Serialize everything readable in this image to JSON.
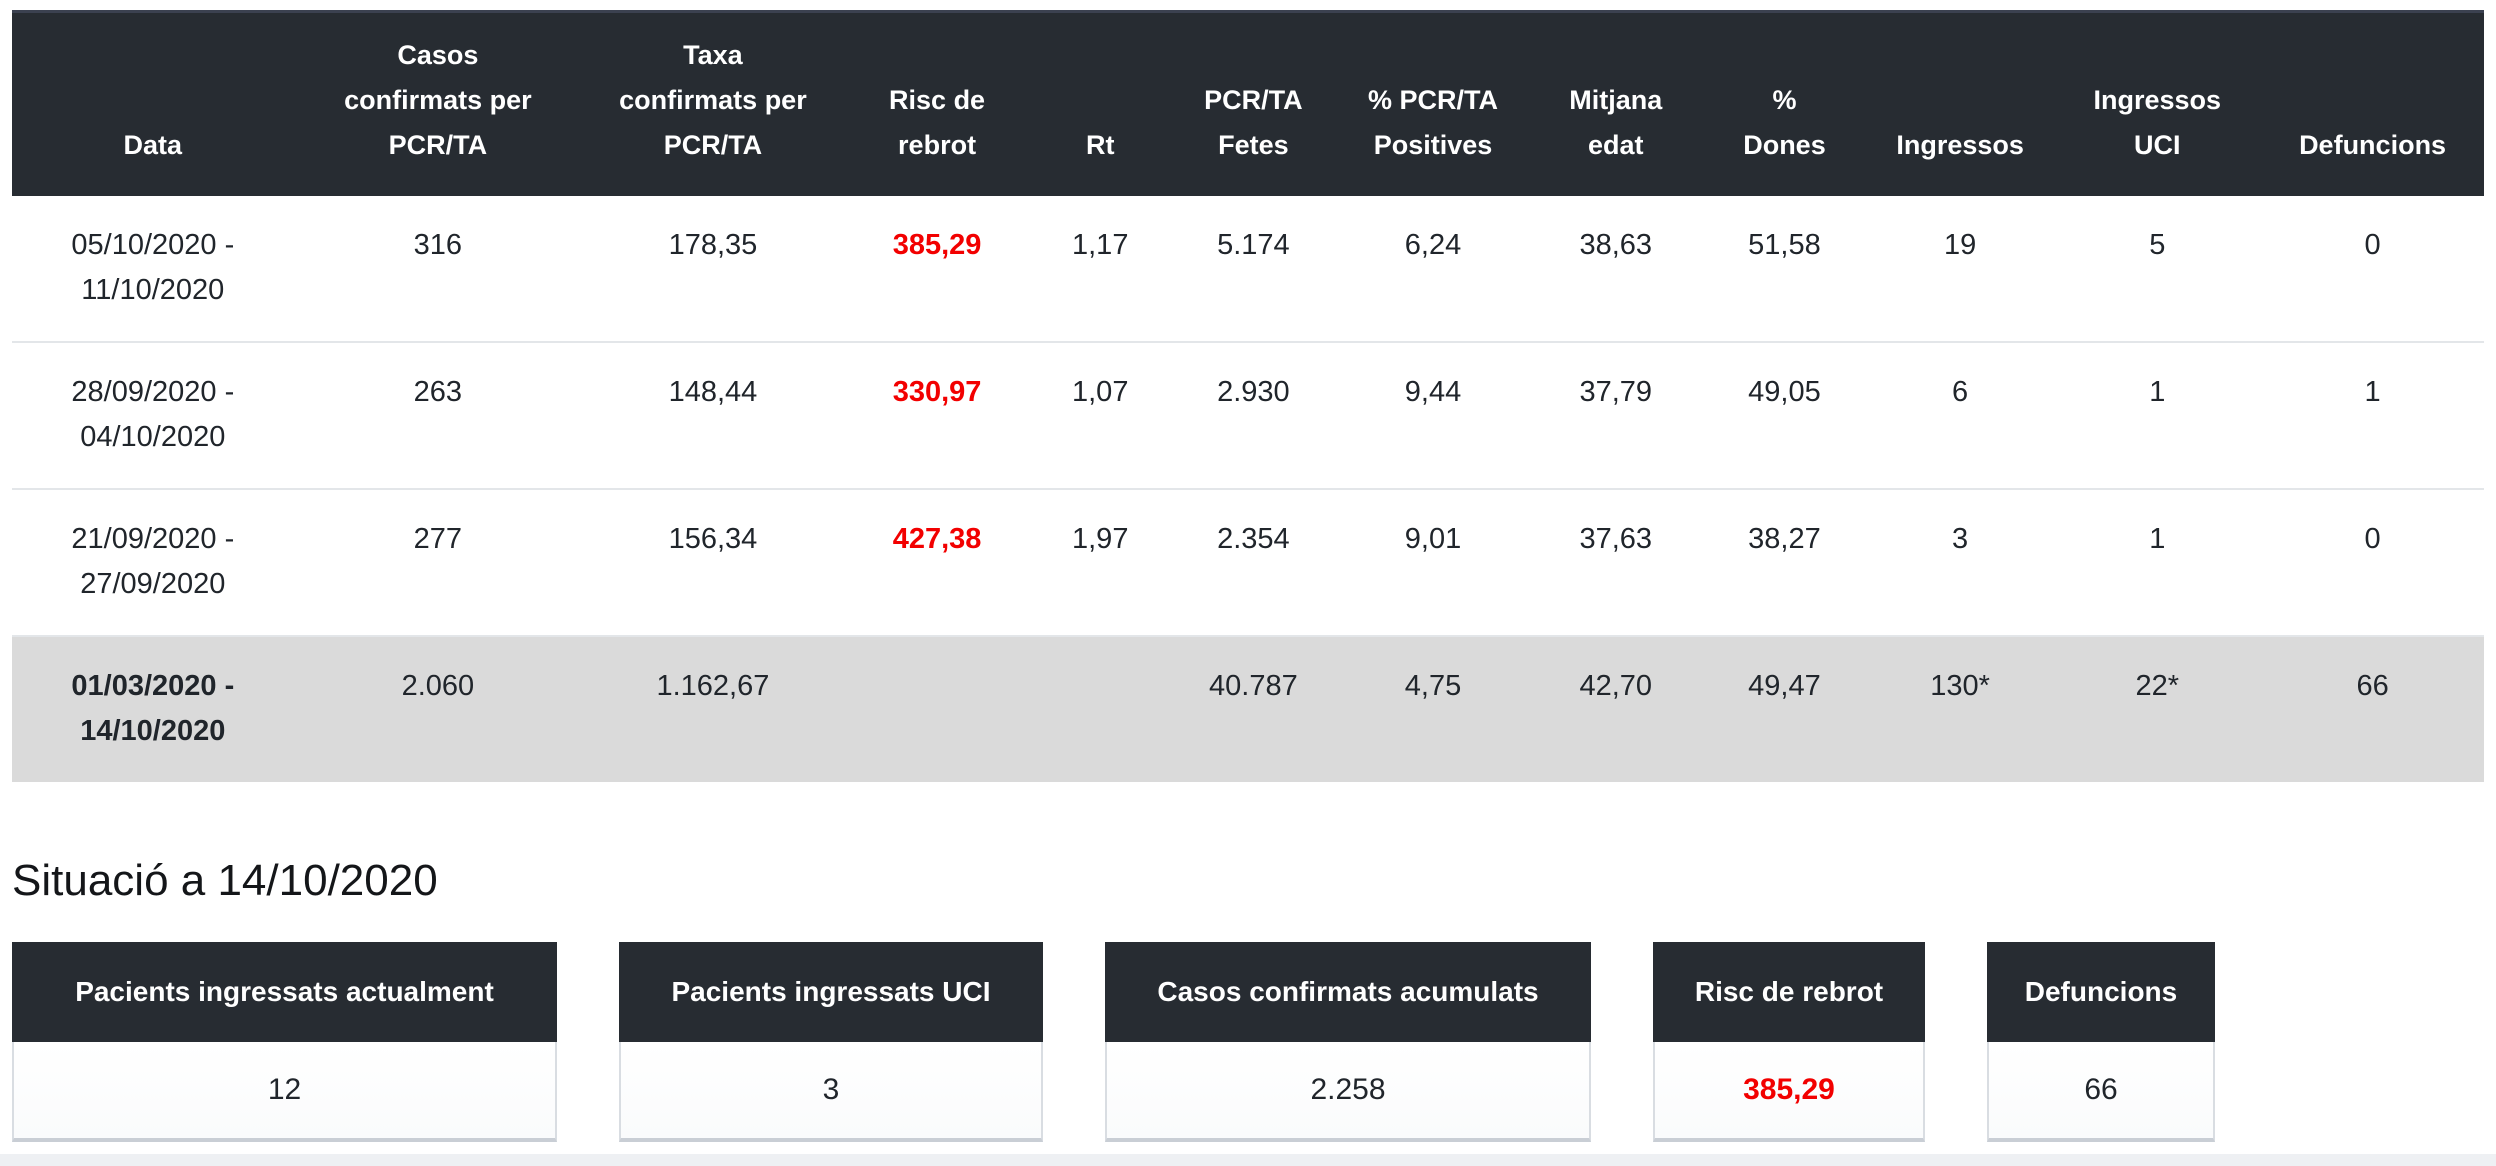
{
  "colors": {
    "header_bg": "#272c32",
    "accent_red": "#f20000",
    "total_row_bg": "#dadada"
  },
  "table": {
    "risc_column_index": 3,
    "columns": [
      "Data",
      "Casos\nconfirmats per\nPCR/TA",
      "Taxa\nconfirmats per\nPCR/TA",
      "Risc de\nrebrot",
      "Rt",
      "PCR/TA\nFetes",
      "% PCR/TA\nPositives",
      "Mitjana\nedat",
      "%\nDones",
      "Ingressos",
      "Ingressos\nUCI",
      "Defuncions"
    ],
    "rows": [
      {
        "total": false,
        "cells": [
          "05/10/2020 -\n11/10/2020",
          "316",
          "178,35",
          "385,29",
          "1,17",
          "5.174",
          "6,24",
          "38,63",
          "51,58",
          "19",
          "5",
          "0"
        ]
      },
      {
        "total": false,
        "cells": [
          "28/09/2020 -\n04/10/2020",
          "263",
          "148,44",
          "330,97",
          "1,07",
          "2.930",
          "9,44",
          "37,79",
          "49,05",
          "6",
          "1",
          "1"
        ]
      },
      {
        "total": false,
        "cells": [
          "21/09/2020 -\n27/09/2020",
          "277",
          "156,34",
          "427,38",
          "1,97",
          "2.354",
          "9,01",
          "37,63",
          "38,27",
          "3",
          "1",
          "0"
        ]
      },
      {
        "total": true,
        "cells": [
          "01/03/2020 -\n14/10/2020",
          "2.060",
          "1.162,67",
          "",
          "",
          "40.787",
          "4,75",
          "42,70",
          "49,47",
          "130*",
          "22*",
          "66"
        ]
      }
    ]
  },
  "situation": {
    "title": "Situació a 14/10/2020",
    "cards": [
      {
        "label": "Pacients ingressats actualment",
        "value": "12",
        "highlight": false
      },
      {
        "label": "Pacients ingressats UCI",
        "value": "3",
        "highlight": false
      },
      {
        "label": "Casos confirmats acumulats",
        "value": "2.258",
        "highlight": false
      },
      {
        "label": "Risc de rebrot",
        "value": "385,29",
        "highlight": true
      },
      {
        "label": "Defuncions",
        "value": "66",
        "highlight": false
      }
    ]
  }
}
